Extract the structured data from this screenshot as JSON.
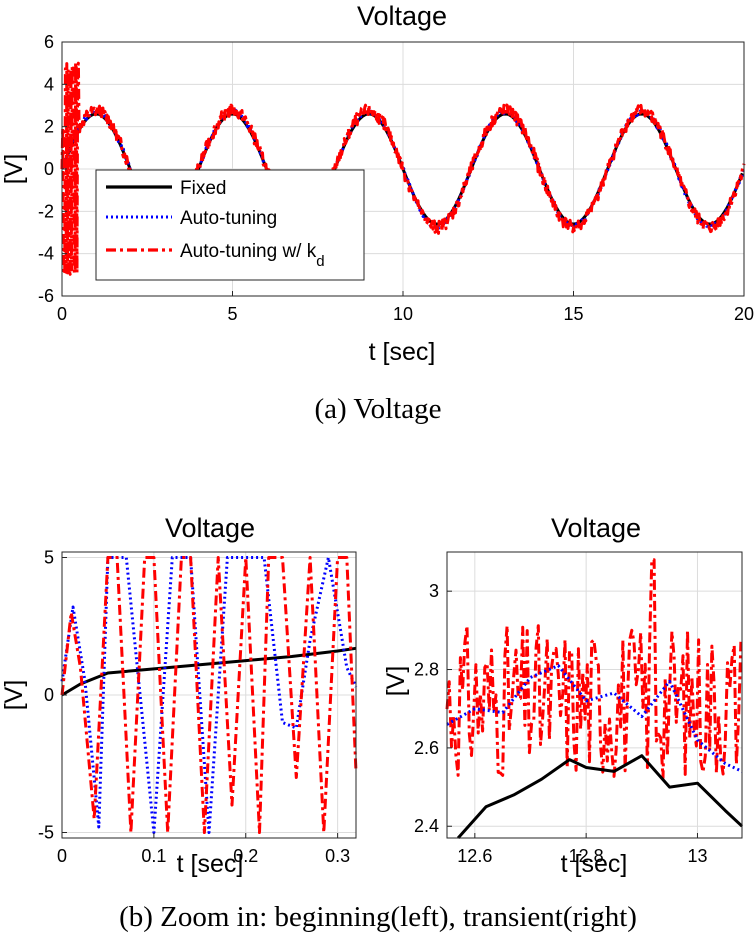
{
  "figure": {
    "caption_a": "(a) Voltage",
    "caption_b": "(b) Zoom in: beginning(left), transient(right)"
  },
  "chart_data": [
    {
      "id": "main",
      "type": "line",
      "title": "Voltage",
      "xlabel": "t [sec]",
      "ylabel": "[V]",
      "xlim": [
        0,
        20
      ],
      "ylim": [
        -6,
        6
      ],
      "xticks": [
        0,
        5,
        10,
        15,
        20
      ],
      "yticks": [
        -6,
        -4,
        -2,
        0,
        2,
        4,
        6
      ],
      "grid": true,
      "legend_position": "bottom-left",
      "legend": [
        {
          "label": "Fixed",
          "color": "#000000",
          "style": "solid"
        },
        {
          "label": "Auto-tuning",
          "color": "#0000ff",
          "style": "dotted"
        },
        {
          "label": "Auto-tuning w/ k",
          "subscript": "d",
          "color": "#ff0000",
          "style": "dashdot"
        }
      ],
      "series": [
        {
          "name": "Fixed",
          "color": "#000000",
          "signal": {
            "amp": 2.6,
            "freq": 0.25,
            "noise": 0.0
          },
          "x": [
            0,
            0.5,
            1,
            1.5,
            2,
            2.5,
            3,
            3.5,
            4,
            4.5,
            5,
            5.5,
            6,
            6.5,
            7,
            7.5,
            8,
            8.5,
            9,
            9.5,
            10,
            10.5,
            11,
            11.5,
            12,
            12.5,
            13,
            13.5,
            14,
            14.5,
            15,
            15.5,
            16,
            16.5,
            17,
            17.5,
            18,
            18.5,
            19,
            19.5,
            20
          ],
          "y": [
            0,
            1.84,
            2.6,
            1.84,
            0,
            -1.84,
            -2.6,
            -1.84,
            0,
            1.84,
            2.6,
            1.84,
            0,
            -1.84,
            -2.6,
            -1.84,
            0,
            1.84,
            2.6,
            1.84,
            0,
            -1.84,
            -2.6,
            -1.84,
            0,
            1.84,
            2.6,
            1.84,
            0,
            -1.84,
            -2.6,
            -1.84,
            0,
            1.84,
            2.6,
            1.84,
            0,
            -1.84,
            -2.6,
            -1.84,
            0
          ]
        },
        {
          "name": "Auto-tuning",
          "color": "#0000ff",
          "signal": {
            "amp": 2.7,
            "freq": 0.25,
            "noise": 0.12
          }
        },
        {
          "name": "Auto-tuning w/ k_d",
          "color": "#ff0000",
          "signal": {
            "amp": 2.75,
            "freq": 0.25,
            "noise": 0.3,
            "startup_burst_until": 0.5,
            "burst_amp": 5
          }
        }
      ]
    },
    {
      "id": "zoom-left",
      "type": "line",
      "title": "Voltage",
      "xlabel": "t [sec]",
      "ylabel": "[V]",
      "xlim": [
        0,
        0.32
      ],
      "ylim": [
        -5.2,
        5.2
      ],
      "xticks": [
        0,
        0.1,
        0.2,
        0.3
      ],
      "yticks": [
        -5,
        0,
        5
      ],
      "grid": true,
      "series": [
        {
          "name": "Fixed",
          "color": "#000000",
          "x": [
            0,
            0.02,
            0.05,
            0.1,
            0.15,
            0.2,
            0.25,
            0.3,
            0.32
          ],
          "y": [
            0,
            0.4,
            0.8,
            0.95,
            1.1,
            1.25,
            1.4,
            1.6,
            1.7
          ]
        },
        {
          "name": "Auto-tuning",
          "color": "#0000ff",
          "x": [
            0,
            0.012,
            0.025,
            0.04,
            0.05,
            0.07,
            0.1,
            0.12,
            0.14,
            0.16,
            0.18,
            0.2,
            0.22,
            0.24,
            0.255,
            0.27,
            0.29,
            0.31,
            0.32
          ],
          "y": [
            0.5,
            3.2,
            0.5,
            -4.8,
            5,
            5,
            -5,
            5,
            5,
            -5,
            5,
            5,
            5,
            -1,
            -1.2,
            2,
            5,
            1,
            0.3
          ]
        },
        {
          "name": "Auto-tuning w/ k_d",
          "color": "#ff0000",
          "x": [
            0,
            0.01,
            0.02,
            0.035,
            0.05,
            0.06,
            0.075,
            0.09,
            0.1,
            0.115,
            0.13,
            0.14,
            0.155,
            0.17,
            0.185,
            0.2,
            0.215,
            0.225,
            0.24,
            0.255,
            0.27,
            0.285,
            0.3,
            0.31,
            0.32
          ],
          "y": [
            0,
            3,
            1,
            -4.5,
            5,
            5,
            -5,
            5,
            5,
            -5,
            5,
            5,
            -5,
            5,
            -4,
            5,
            -5,
            5,
            5,
            -3,
            5,
            -5,
            5,
            5,
            -2.8
          ]
        }
      ]
    },
    {
      "id": "zoom-right",
      "type": "line",
      "title": "Voltage",
      "xlabel": "t [sec]",
      "ylabel": "[V]",
      "xlim": [
        12.55,
        13.08
      ],
      "ylim": [
        2.37,
        3.1
      ],
      "xticks": [
        12.6,
        12.8,
        13
      ],
      "yticks": [
        2.4,
        2.6,
        2.8,
        3
      ],
      "ytick_labels": [
        "2.4",
        "2.6",
        "2.8",
        "3"
      ],
      "grid": true,
      "series": [
        {
          "name": "Fixed",
          "color": "#000000",
          "x": [
            12.57,
            12.62,
            12.67,
            12.72,
            12.77,
            12.8,
            12.85,
            12.9,
            12.95,
            13.0,
            13.05,
            13.08
          ],
          "y": [
            2.36,
            2.45,
            2.48,
            2.52,
            2.57,
            2.55,
            2.54,
            2.58,
            2.5,
            2.51,
            2.44,
            2.4
          ]
        },
        {
          "name": "Auto-tuning",
          "color": "#0000ff",
          "x": [
            12.55,
            12.6,
            12.65,
            12.7,
            12.75,
            12.8,
            12.85,
            12.9,
            12.95,
            13.0,
            13.05,
            13.08
          ],
          "y": [
            2.66,
            2.7,
            2.69,
            2.78,
            2.81,
            2.72,
            2.74,
            2.68,
            2.77,
            2.62,
            2.56,
            2.54
          ]
        },
        {
          "name": "Auto-tuning w/ k_d",
          "color": "#ff0000",
          "signal": {
            "center": 2.72,
            "spread": 0.2,
            "peak_x": 12.92,
            "peak_y": 3.08,
            "min_y": 2.37
          }
        }
      ]
    }
  ]
}
